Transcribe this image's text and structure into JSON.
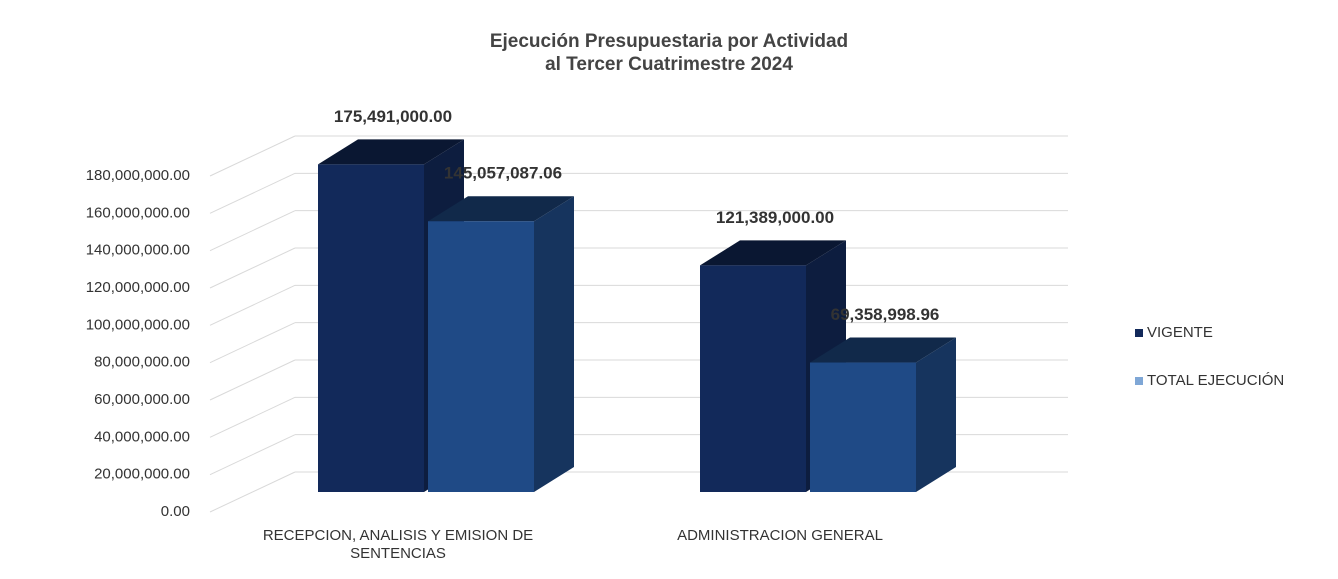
{
  "chart_data": {
    "type": "bar3d",
    "title": "Ejecución Presupuestaria por Actividad\nal Tercer Cuatrimestre 2024",
    "categories": [
      "RECEPCION, ANALISIS Y EMISION DE SENTENCIAS",
      "ADMINISTRACION GENERAL"
    ],
    "series": [
      {
        "name": "VIGENTE",
        "color": "#12295a",
        "values": [
          175491000.0,
          121389000.0
        ],
        "value_labels": [
          "175,491,000.00",
          "121,389,000.00"
        ]
      },
      {
        "name": "TOTAL EJECUCIÓN",
        "color": "#1f4a86",
        "values": [
          145057087.06,
          69358998.96
        ],
        "value_labels": [
          "145,057,087.06",
          "69,358,998.96"
        ]
      }
    ],
    "ylim": [
      0,
      180000000
    ],
    "yticks": [
      {
        "value": 0,
        "label": "0.00"
      },
      {
        "value": 20000000,
        "label": "20,000,000.00"
      },
      {
        "value": 40000000,
        "label": "40,000,000.00"
      },
      {
        "value": 60000000,
        "label": "60,000,000.00"
      },
      {
        "value": 80000000,
        "label": "80,000,000.00"
      },
      {
        "value": 100000000,
        "label": "100,000,000.00"
      },
      {
        "value": 120000000,
        "label": "120,000,000.00"
      },
      {
        "value": 140000000,
        "label": "140,000,000.00"
      },
      {
        "value": 160000000,
        "label": "160,000,000.00"
      },
      {
        "value": 180000000,
        "label": "180,000,000.00"
      }
    ],
    "grid": true,
    "legend": "right"
  }
}
